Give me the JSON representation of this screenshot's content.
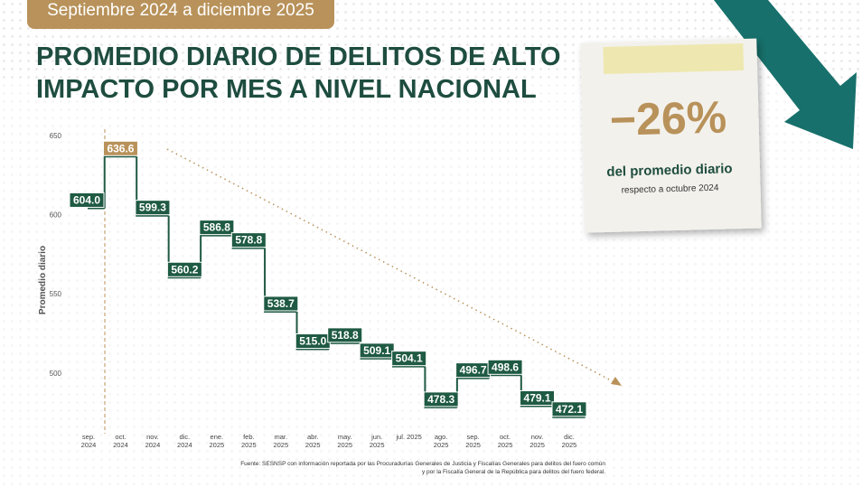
{
  "chart_data": {
    "type": "step",
    "badge": "Septiembre 2024 a diciembre 2025",
    "title": [
      "PROMEDIO DIARIO DE DELITOS DE ALTO",
      "IMPACTO POR MES A NIVEL NACIONAL"
    ],
    "y_label": "Promedio diario",
    "categories": [
      "sep. 2024",
      "oct. 2024",
      "nov. 2024",
      "dic. 2024",
      "ene. 2025",
      "feb. 2025",
      "mar. 2025",
      "abr. 2025",
      "may. 2025",
      "jun. 2025",
      "jul. 2025",
      "ago. 2025",
      "sep. 2025",
      "oct. 2025",
      "nov. 2025",
      "dic. 2025"
    ],
    "values": [
      604.0,
      636.6,
      599.3,
      560.2,
      586.8,
      578.8,
      538.7,
      515.0,
      518.8,
      509.1,
      504.1,
      478.3,
      496.7,
      498.6,
      479.1,
      472.1
    ],
    "value_labels": [
      "604.0",
      "636.6",
      "599.3",
      "560.2",
      "586.8",
      "578.8",
      "538.7",
      "515.0",
      "518.8",
      "509.1",
      "504.1",
      "478.3",
      "496.7",
      "498.6",
      "479.1",
      "472.1"
    ],
    "color": "#1f5a43",
    "label_colors": [
      "#1f5a43",
      "#b8925a",
      "#1f5a43",
      "#1f5a43",
      "#1f5a43",
      "#1f5a43",
      "#1f5a43",
      "#1f5a43",
      "#1f5a43",
      "#1f5a43",
      "#1f5a43",
      "#1f5a43",
      "#1f5a43",
      "#1f5a43",
      "#1f5a43",
      "#1f5a43"
    ],
    "ylim": [
      460,
      655
    ],
    "yticks": [
      500,
      550,
      600,
      650
    ],
    "callout": {
      "value": "−26%",
      "line1": "del promedio diario",
      "line2": "respecto a octubre 2024"
    },
    "source": [
      "Fuente: SESNSP con información reportada por las Procuradurías Generales de Justicia y Fiscalías Generales para delitos del fuero común",
      "y por la Fiscalía General de la República para delitos del fuero federal."
    ]
  }
}
